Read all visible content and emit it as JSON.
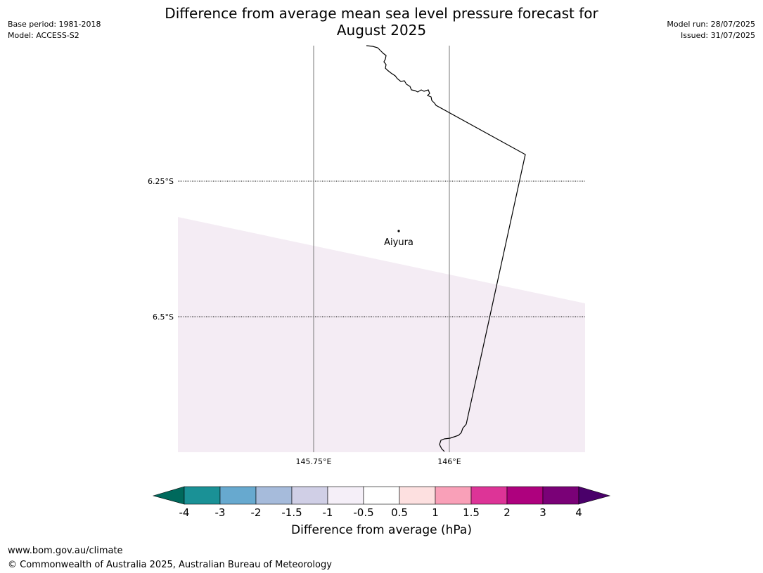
{
  "title": {
    "line1": "Difference from average mean sea level pressure forecast for",
    "line2": "August 2025"
  },
  "header_left": {
    "base_period": "Base period: 1981-2018",
    "model": "Model: ACCESS-S2"
  },
  "header_right": {
    "model_run": "Model run: 28/07/2025",
    "issued": "Issued: 31/07/2025"
  },
  "map": {
    "lat_labels": [
      "6.25°S",
      "6.5°S"
    ],
    "lon_labels": [
      "145.75°E",
      "146°E"
    ],
    "place": {
      "name": "Aiyura"
    },
    "fill_color": "#f4ecf4"
  },
  "colorbar": {
    "label": "Difference from average (hPa)",
    "tick_labels": [
      "-4",
      "-3",
      "-2",
      "-1.5",
      "-1",
      "-0.5",
      "0.5",
      "1",
      "1.5",
      "2",
      "3",
      "4"
    ],
    "under_color": "#00695c",
    "over_color": "#4a006a",
    "colors": [
      "#1a9196",
      "#67a9cf",
      "#a6bbdb",
      "#d0cfe6",
      "#f5eff8",
      "#ffffff",
      "#fde0e0",
      "#f9a0b8",
      "#dd3497",
      "#ae017e",
      "#7a0177"
    ]
  },
  "footer": {
    "url": "www.bom.gov.au/climate",
    "copyright": "© Commonwealth of Australia 2025, Australian Bureau of Meteorology"
  }
}
